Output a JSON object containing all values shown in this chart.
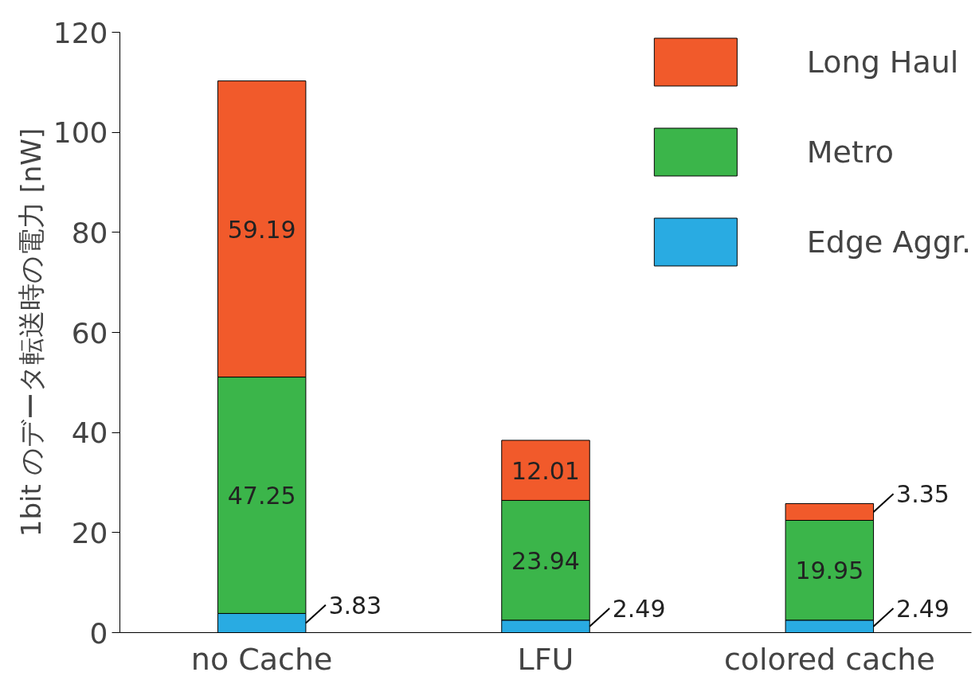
{
  "chart_data": {
    "type": "bar",
    "stacked": true,
    "ylabel": "1bit のデータ転送時の電力 [nW]",
    "categories": [
      "no Cache",
      "LFU",
      "colored cache"
    ],
    "series": [
      {
        "name": "Edge Aggr.",
        "color": "#29abe2",
        "values": [
          3.83,
          2.49,
          2.49
        ]
      },
      {
        "name": "Metro",
        "color": "#3bb54a",
        "values": [
          47.25,
          23.94,
          19.95
        ]
      },
      {
        "name": "Long Haul",
        "color": "#f15a2b",
        "values": [
          59.19,
          12.01,
          3.35
        ]
      }
    ],
    "ylim": [
      0,
      120
    ],
    "yticks": [
      0,
      20,
      40,
      60,
      80,
      100,
      120
    ],
    "data_labels": true,
    "grid": false,
    "legend": "top right"
  }
}
